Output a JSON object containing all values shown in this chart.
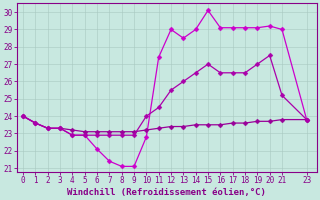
{
  "xlabel": "Windchill (Refroidissement éolien,°C)",
  "background_color": "#c8e8e0",
  "line_color1": "#cc00cc",
  "line_color2": "#990099",
  "line_color3": "#aa00aa",
  "xlim": [
    -0.5,
    23.8
  ],
  "ylim": [
    20.8,
    30.5
  ],
  "xticks": [
    0,
    1,
    2,
    3,
    4,
    5,
    6,
    7,
    8,
    9,
    10,
    11,
    12,
    13,
    14,
    15,
    16,
    17,
    18,
    19,
    20,
    21,
    23
  ],
  "xtick_labels": [
    "0",
    "1",
    "2",
    "3",
    "4",
    "5",
    "6",
    "7",
    "8",
    "9",
    "10",
    "11",
    "12",
    "13",
    "14",
    "15",
    "16",
    "17",
    "18",
    "19",
    "20",
    "21",
    "23"
  ],
  "yticks": [
    21,
    22,
    23,
    24,
    25,
    26,
    27,
    28,
    29,
    30
  ],
  "line1_x": [
    0,
    1,
    2,
    3,
    4,
    5,
    6,
    7,
    8,
    9,
    10,
    11,
    12,
    13,
    14,
    15,
    16,
    17,
    18,
    19,
    20,
    21,
    23
  ],
  "line1_y": [
    24.0,
    23.6,
    23.3,
    23.3,
    22.9,
    22.9,
    22.1,
    21.4,
    21.1,
    21.1,
    22.8,
    27.4,
    29.0,
    28.5,
    29.0,
    30.1,
    29.1,
    29.1,
    29.1,
    29.1,
    29.2,
    29.0,
    23.8
  ],
  "line2_x": [
    0,
    1,
    2,
    3,
    4,
    5,
    6,
    7,
    8,
    9,
    10,
    11,
    12,
    13,
    14,
    15,
    16,
    17,
    18,
    19,
    20,
    21,
    23
  ],
  "line2_y": [
    24.0,
    23.6,
    23.3,
    23.3,
    23.2,
    23.1,
    23.1,
    23.1,
    23.1,
    23.1,
    23.2,
    23.3,
    23.4,
    23.4,
    23.5,
    23.5,
    23.5,
    23.6,
    23.6,
    23.7,
    23.7,
    23.8,
    23.8
  ],
  "line3_x": [
    0,
    1,
    2,
    3,
    4,
    5,
    6,
    7,
    8,
    9,
    10,
    11,
    12,
    13,
    14,
    15,
    16,
    17,
    18,
    19,
    20,
    21,
    23
  ],
  "line3_y": [
    24.0,
    23.6,
    23.3,
    23.3,
    22.9,
    22.9,
    22.9,
    22.9,
    22.9,
    22.9,
    24.0,
    24.5,
    25.5,
    26.0,
    26.5,
    27.0,
    26.5,
    26.5,
    26.5,
    27.0,
    27.5,
    25.2,
    23.8
  ],
  "marker": "D",
  "markersize": 2.5,
  "linewidth": 0.9,
  "tick_fontsize": 5.5,
  "xlabel_fontsize": 6.5
}
